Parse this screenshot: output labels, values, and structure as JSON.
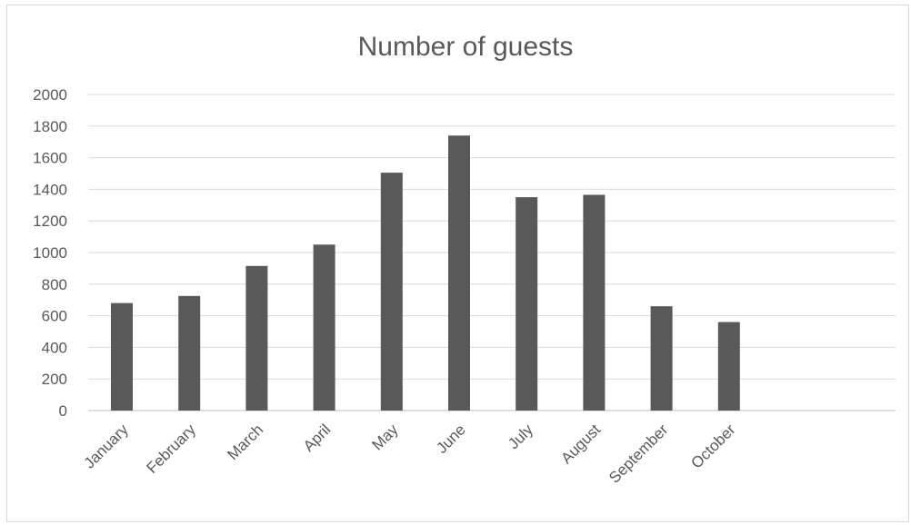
{
  "chart_data": {
    "type": "bar",
    "title": "Number of guests",
    "xlabel": "",
    "ylabel": "",
    "categories": [
      "January",
      "February",
      "March",
      "April",
      "May",
      "June",
      "July",
      "August",
      "September",
      "October"
    ],
    "values": [
      680,
      725,
      915,
      1050,
      1505,
      1740,
      1350,
      1365,
      660,
      560
    ],
    "ylim": [
      0,
      2000
    ],
    "yticks": [
      "0",
      "200",
      "400",
      "600",
      "800",
      "1000",
      "1200",
      "1400",
      "1600",
      "1800",
      "2000"
    ],
    "grid": true,
    "legend": "none",
    "bar_color": "#595959"
  }
}
